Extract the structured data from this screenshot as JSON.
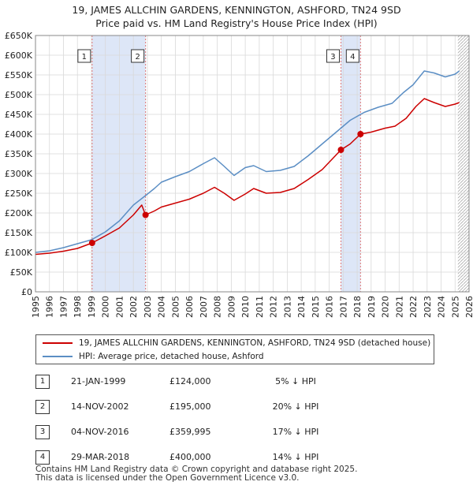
{
  "title_line1": "19, JAMES ALLCHIN GARDENS, KENNINGTON, ASHFORD, TN24 9SD",
  "title_line2": "Price paid vs. HM Land Registry's House Price Index (HPI)",
  "legend": {
    "property_label": "19, JAMES ALLCHIN GARDENS, KENNINGTON, ASHFORD, TN24 9SD (detached house)",
    "hpi_label": "HPI: Average price, detached house, Ashford"
  },
  "colors": {
    "property": "#cc0000",
    "hpi": "#5b8ec4",
    "shade": "#dde6f7",
    "marker_line": "#dd7777",
    "grid": "#d9d9d9"
  },
  "transactions": [
    {
      "num": "1",
      "date": "21-JAN-1999",
      "price": "£124,000",
      "hpi_diff": "5% ↓ HPI",
      "year": 1999.05,
      "value": 124000
    },
    {
      "num": "2",
      "date": "14-NOV-2002",
      "price": "£195,000",
      "hpi_diff": "20% ↓ HPI",
      "year": 2002.87,
      "value": 195000
    },
    {
      "num": "3",
      "date": "04-NOV-2016",
      "price": "£359,995",
      "hpi_diff": "17% ↓ HPI",
      "year": 2016.84,
      "value": 359995
    },
    {
      "num": "4",
      "date": "29-MAR-2018",
      "price": "£400,000",
      "hpi_diff": "14% ↓ HPI",
      "year": 2018.24,
      "value": 400000
    }
  ],
  "footer_line1": "Contains HM Land Registry data © Crown copyright and database right 2025.",
  "footer_line2": "This data is licensed under the Open Government Licence v3.0.",
  "chart_data": {
    "type": "line",
    "title": "Price paid vs. HM Land Registry's House Price Index (HPI)",
    "xlabel": "",
    "ylabel": "",
    "xlim": [
      1995,
      2026
    ],
    "ylim": [
      0,
      650000
    ],
    "y_ticks": [
      0,
      50000,
      100000,
      150000,
      200000,
      250000,
      300000,
      350000,
      400000,
      450000,
      500000,
      550000,
      600000,
      650000
    ],
    "y_tick_labels": [
      "£0",
      "£50K",
      "£100K",
      "£150K",
      "£200K",
      "£250K",
      "£300K",
      "£350K",
      "£400K",
      "£450K",
      "£500K",
      "£550K",
      "£600K",
      "£650K"
    ],
    "x_ticks": [
      1995,
      1996,
      1997,
      1998,
      1999,
      2000,
      2001,
      2002,
      2003,
      2004,
      2005,
      2006,
      2007,
      2008,
      2009,
      2010,
      2011,
      2012,
      2013,
      2014,
      2015,
      2016,
      2017,
      2018,
      2019,
      2020,
      2021,
      2022,
      2023,
      2024,
      2025,
      2026
    ],
    "x_tick_labels": [
      "1995",
      "1996",
      "1997",
      "1998",
      "1999",
      "2000",
      "2001",
      "2002",
      "2003",
      "2004",
      "2005",
      "2006",
      "2007",
      "2008",
      "2009",
      "2010",
      "2011",
      "2012",
      "2013",
      "2014",
      "2015",
      "2016",
      "2017",
      "2018",
      "2019",
      "2020",
      "2021",
      "2022",
      "2023",
      "2024",
      "2025",
      "2026"
    ],
    "grid": true,
    "legend_position": "below",
    "shaded_periods": [
      [
        1999.05,
        2002.87
      ],
      [
        2016.84,
        2018.24
      ]
    ],
    "future_hatch_from": 2025.2,
    "series": [
      {
        "name": "HPI: Average price, detached house, Ashford",
        "x": [
          1995.0,
          1996.0,
          1997.0,
          1998.0,
          1999.0,
          2000.0,
          2001.0,
          2002.0,
          2002.9,
          2003.5,
          2004.0,
          2005.0,
          2006.0,
          2007.0,
          2007.8,
          2008.5,
          2009.2,
          2010.0,
          2010.6,
          2011.5,
          2012.5,
          2013.5,
          2014.5,
          2015.5,
          2016.5,
          2017.5,
          2018.5,
          2019.5,
          2020.5,
          2021.3,
          2022.0,
          2022.8,
          2023.5,
          2024.3,
          2025.0,
          2025.3
        ],
        "values": [
          100000,
          104000,
          112000,
          122000,
          132000,
          152000,
          180000,
          220000,
          245000,
          262000,
          278000,
          292000,
          305000,
          325000,
          340000,
          318000,
          295000,
          315000,
          320000,
          305000,
          308000,
          318000,
          345000,
          375000,
          405000,
          435000,
          455000,
          468000,
          478000,
          505000,
          525000,
          560000,
          555000,
          545000,
          552000,
          560000
        ]
      },
      {
        "name": "19, JAMES ALLCHIN GARDENS, KENNINGTON, ASHFORD, TN24 9SD (detached house)",
        "x": [
          1995.0,
          1996.0,
          1997.0,
          1998.0,
          1999.05,
          2000.0,
          2001.0,
          2002.0,
          2002.6,
          2002.87,
          2003.5,
          2004.0,
          2005.0,
          2006.0,
          2007.0,
          2007.8,
          2008.5,
          2009.2,
          2010.0,
          2010.6,
          2011.5,
          2012.5,
          2013.5,
          2014.5,
          2015.5,
          2016.84,
          2017.5,
          2018.24,
          2019.0,
          2020.0,
          2020.7,
          2021.5,
          2022.2,
          2022.8,
          2023.5,
          2024.3,
          2025.0,
          2025.3
        ],
        "values": [
          95000,
          98000,
          103000,
          110000,
          124000,
          142000,
          162000,
          195000,
          220000,
          195000,
          205000,
          215000,
          225000,
          235000,
          250000,
          265000,
          250000,
          232000,
          248000,
          262000,
          250000,
          252000,
          262000,
          285000,
          310000,
          359995,
          375000,
          400000,
          405000,
          415000,
          420000,
          440000,
          470000,
          490000,
          480000,
          470000,
          476000,
          480000
        ]
      }
    ]
  }
}
